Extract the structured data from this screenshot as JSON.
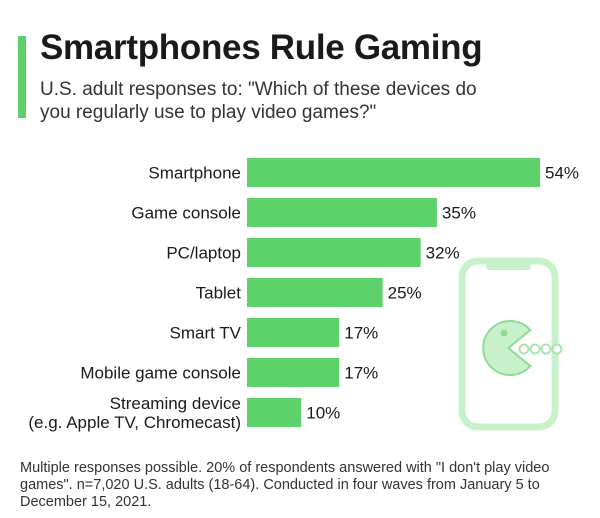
{
  "header": {
    "title": "Smartphones Rule Gaming",
    "subtitle": "U.S. adult responses to: \"Which of these devices do you regularly use to play video games?\""
  },
  "chart_data": {
    "type": "bar",
    "orientation": "horizontal",
    "categories": [
      "Smartphone",
      "Game console",
      "PC/laptop",
      "Tablet",
      "Smart TV",
      "Mobile game console",
      "Streaming device\n(e.g. Apple TV, Chromecast)"
    ],
    "values": [
      54,
      35,
      32,
      25,
      17,
      17,
      10
    ],
    "value_labels": [
      "54%",
      "35%",
      "32%",
      "25%",
      "17%",
      "17%",
      "10%"
    ],
    "unit": "%",
    "xlim": [
      0,
      54
    ],
    "grid": false,
    "bar_color": "#5dd16a"
  },
  "illustration": {
    "icon": "smartphone-pacman-icon",
    "color": "#c8f0cb"
  },
  "footnote": "Multiple responses possible. 20% of respondents answered with \"I don't play video games\". n=7,020 U.S. adults (18-64). Conducted in four waves from January 5 to December 15, 2021."
}
